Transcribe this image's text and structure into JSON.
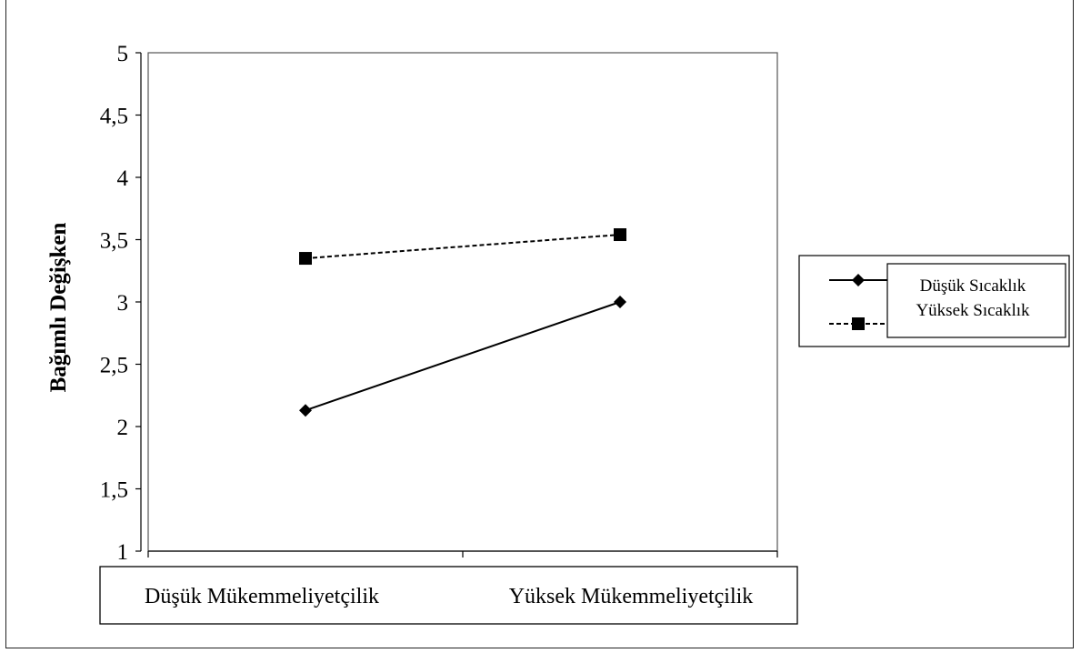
{
  "chart_data": {
    "type": "line",
    "title": "",
    "xlabel": "",
    "ylabel": "Bağımlı Değişken",
    "categories": [
      "Düşük Mükemmeliyetçilik",
      "Yüksek Mükemmeliyetçilik"
    ],
    "ylim": [
      1,
      5
    ],
    "y_ticks": [
      "1",
      "1,5",
      "2",
      "2,5",
      "3",
      "3,5",
      "4",
      "4,5",
      "5"
    ],
    "grid": false,
    "legend_position": "right",
    "series": [
      {
        "name": "Düşük Sıcaklık",
        "values": [
          2.13,
          3.0
        ],
        "marker": "diamond",
        "line_style": "solid",
        "color": "#000000"
      },
      {
        "name": "Yüksek Sıcaklık",
        "values": [
          3.35,
          3.54
        ],
        "marker": "square",
        "line_style": "dashed",
        "color": "#000000"
      }
    ]
  }
}
